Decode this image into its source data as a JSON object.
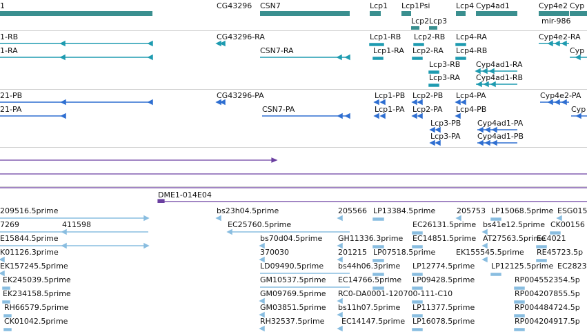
{
  "colors": {
    "gene": "#3a8f8f",
    "rna": "#1f9bb0",
    "protein": "#2f6fd1",
    "alignment": "#6a3fa0",
    "est": "#89bde0",
    "separator": "#cfcfcf"
  },
  "tracks": {
    "genes": {
      "labels": [
        "1",
        "CG43296",
        "CSN7",
        "Lcp1",
        "Lcp1Psi",
        "Lcp2",
        "Lcp3",
        "Lcp4",
        "Cyp4ad1",
        "Cyp4e2",
        "Cyp",
        "mir-986"
      ]
    },
    "transcripts": {
      "labels": [
        "1-RB",
        "1-RA",
        "CG43296-RA",
        "CSN7-RA",
        "Lcp1-RB",
        "Lcp2-RB",
        "Lcp4-RA",
        "Cyp4e2-RA",
        "Lcp1-RA",
        "Lcp2-RA",
        "Lcp4-RB",
        "Cyp",
        "Lcp3-RB",
        "Cyp4ad1-RA",
        "Lcp3-RA",
        "Cyp4ad1-RB"
      ]
    },
    "proteins": {
      "labels": [
        "21-PB",
        "21-PA",
        "CG43296-PA",
        "CSN7-PA",
        "Lcp1-PB",
        "Lcp2-PB",
        "Lcp4-PA",
        "Cyp4e2-PA",
        "Lcp1-PA",
        "Lcp2-PA",
        "Lcp4-PB",
        "Cyp",
        "Lcp3-PB",
        "Cyp4ad1-PA",
        "Lcp3-PA",
        "Cyp4ad1-PB"
      ]
    },
    "alignments": {
      "labels": [
        "DME1-014E04"
      ]
    },
    "ests": {
      "labels": [
        "209516.5prime",
        "bs23h04.5prime",
        "205566",
        "LP13384.5prime",
        "205753",
        "LP15068.5prime",
        "ESG015",
        "7269",
        "411598",
        "EC25760.5prime",
        "EC26131.5prime",
        "bs41e12.5prime",
        "CK00156",
        "E15844.5prime",
        "bs70d04.5prime",
        "GH11336.3prime",
        "EC14851.5prime",
        "AT27563.5prime",
        "EC4021",
        "K01126.3prime",
        "370030",
        "201215",
        "LP07518.5prime",
        "EK155545.5prime",
        "RE45723.5p",
        "EK157245.5prime",
        "LD09490.5prime",
        "bs44h06.3prime",
        "LP12774.5prime",
        "LP12125.5prime",
        "EC2823",
        "EK245039.5prime",
        "GM10537.5prime",
        "EC14766.5prime",
        "LP09428.5prime",
        "RP004552354.5p",
        "EK234158.5prime",
        "GM09769.5prime",
        "RC0-DA0001-120700-111-C10",
        "RP004207855.5p",
        "RH66579.5prime",
        "GM03851.5prime",
        "bs11h07.5prime",
        "LP11377.5prime",
        "RP004484724.5p",
        "CK01042.5prime",
        "RH32537.5prime",
        "EC14147.5prime",
        "LP16078.5prime",
        "RP004204917.5p"
      ]
    }
  }
}
